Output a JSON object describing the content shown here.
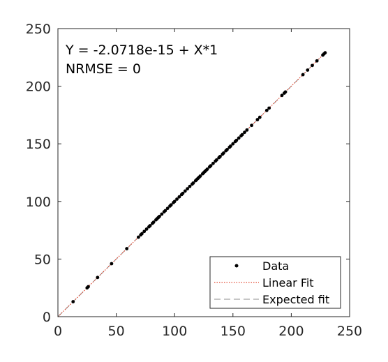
{
  "chart_data": {
    "type": "scatter",
    "title": "",
    "xlabel": "",
    "ylabel": "",
    "xlim": [
      0,
      250
    ],
    "ylim": [
      0,
      250
    ],
    "xticks": [
      "0",
      "50",
      "100",
      "150",
      "200",
      "250"
    ],
    "yticks": [
      "0",
      "50",
      "100",
      "150",
      "200",
      "250"
    ],
    "grid": false,
    "annotations": {
      "equation": "Y = -2.0718e-15 + X*1",
      "nrmse": "NRMSE = 0"
    },
    "legend": {
      "placement": "bottom-right",
      "entries": [
        "Data",
        "Linear Fit",
        "Expected fit"
      ]
    },
    "colors": {
      "data": "#000000",
      "linear_fit": "#e24a33",
      "expected_fit": "#8c8c8c",
      "axes": "#262626"
    },
    "series": [
      {
        "name": "Data",
        "x": [
          13,
          25,
          26,
          34,
          46,
          59,
          69,
          71,
          72,
          74,
          76,
          78,
          79,
          81,
          82,
          84,
          85,
          86,
          87,
          89,
          91,
          92,
          94,
          96,
          97,
          99,
          100,
          102,
          104,
          106,
          107,
          109,
          111,
          113,
          115,
          116,
          118,
          119,
          120,
          121,
          122,
          124,
          125,
          126,
          127,
          128,
          130,
          131,
          133,
          135,
          136,
          138,
          139,
          141,
          142,
          144,
          145,
          147,
          148,
          150,
          152,
          153,
          155,
          157,
          158,
          160,
          162,
          166,
          171,
          173,
          179,
          181,
          192,
          194,
          195,
          210,
          214,
          218,
          222,
          227,
          228,
          229
        ],
        "y": [
          13,
          25,
          26,
          34,
          46,
          59,
          69,
          71,
          72,
          74,
          76,
          78,
          79,
          81,
          82,
          84,
          85,
          86,
          87,
          89,
          91,
          92,
          94,
          96,
          97,
          99,
          100,
          102,
          104,
          106,
          107,
          109,
          111,
          113,
          115,
          116,
          118,
          119,
          120,
          121,
          122,
          124,
          125,
          126,
          127,
          128,
          130,
          131,
          133,
          135,
          136,
          138,
          139,
          141,
          142,
          144,
          145,
          147,
          148,
          150,
          152,
          153,
          155,
          157,
          158,
          160,
          162,
          166,
          171,
          173,
          179,
          181,
          192,
          194,
          195,
          210,
          214,
          218,
          222,
          227,
          228,
          229
        ]
      },
      {
        "name": "Linear Fit",
        "intercept": -2.0718e-15,
        "slope": 1,
        "x": [
          0,
          230
        ]
      },
      {
        "name": "Expected fit",
        "intercept": 0,
        "slope": 1,
        "x": [
          0,
          230
        ]
      }
    ]
  }
}
